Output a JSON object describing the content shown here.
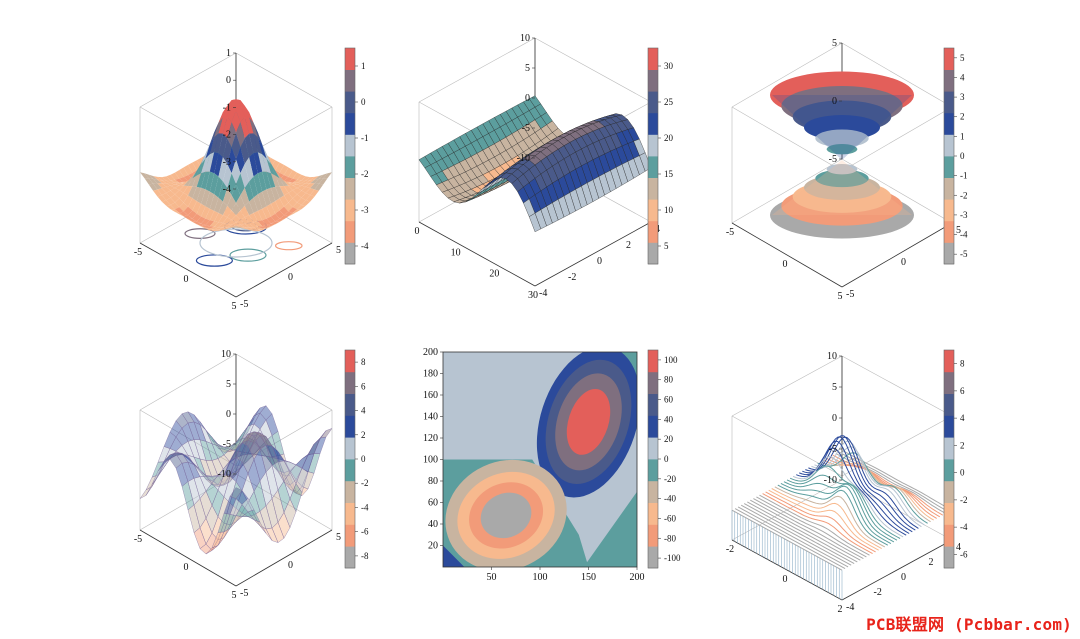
{
  "palette": [
    "#a9a9a9",
    "#f29b79",
    "#f7b98e",
    "#c8b4a0",
    "#5c9e9e",
    "#b7c4d1",
    "#2b4a9b",
    "#4a5a8a",
    "#7f6f7f",
    "#e35f5a"
  ],
  "watermark": "PCB联盟网 (Pcbbar.com)",
  "chart_data": [
    {
      "type": "surface",
      "subtype": "surface-with-floor-contour",
      "xticks": [
        "-5",
        "0",
        "5"
      ],
      "yticks": [
        "-5",
        "0",
        "5"
      ],
      "zticks": [
        "-4",
        "-3",
        "-2",
        "-1",
        "0",
        "1"
      ],
      "colorbar_ticks": [
        "1",
        "0",
        "-1",
        "-2",
        "-3",
        "-4"
      ],
      "zlim": [
        -4.5,
        1.8
      ]
    },
    {
      "type": "surface",
      "subtype": "saddle-mesh",
      "xticks": [
        "0",
        "10",
        "20",
        "30"
      ],
      "yticks": [
        "-4",
        "-2",
        "0",
        "2",
        "4"
      ],
      "zticks": [
        "-10",
        "-5",
        "0",
        "5",
        "10"
      ],
      "colorbar_ticks": [
        "30",
        "25",
        "20",
        "15",
        "10",
        "5"
      ],
      "zlim": [
        -10,
        10
      ]
    },
    {
      "type": "surface",
      "subtype": "double-cone",
      "xticks": [
        "-5",
        "0",
        "5"
      ],
      "yticks": [
        "-5",
        "0",
        "5"
      ],
      "zticks": [
        "-5",
        "0",
        "5"
      ],
      "colorbar_ticks": [
        "5",
        "4",
        "3",
        "2",
        "1",
        "0",
        "-1",
        "-2",
        "-3",
        "-4",
        "-5"
      ],
      "zlim": [
        -5,
        5
      ]
    },
    {
      "type": "surface",
      "subtype": "translucent-wavy-surface",
      "xticks": [
        "-5",
        "0",
        "5"
      ],
      "yticks": [
        "-5",
        "0",
        "5"
      ],
      "zticks": [
        "-10",
        "-5",
        "0",
        "5",
        "10"
      ],
      "colorbar_ticks": [
        "8",
        "6",
        "4",
        "2",
        "0",
        "-2",
        "-4",
        "-6",
        "-8"
      ],
      "zlim": [
        -10,
        10
      ]
    },
    {
      "type": "heatmap",
      "subtype": "filled-contour",
      "xticks": [
        "50",
        "100",
        "150",
        "200"
      ],
      "yticks": [
        "20",
        "40",
        "60",
        "80",
        "100",
        "120",
        "140",
        "160",
        "180",
        "200"
      ],
      "xlim": [
        0,
        200
      ],
      "ylim": [
        0,
        200
      ],
      "colorbar_ticks": [
        "100",
        "80",
        "60",
        "40",
        "20",
        "0",
        "-20",
        "-40",
        "-60",
        "-80",
        "-100"
      ]
    },
    {
      "type": "surface",
      "subtype": "waterfall-lines",
      "xticks": [
        "-2",
        "0",
        "2"
      ],
      "yticks": [
        "-4",
        "-2",
        "0",
        "2",
        "4"
      ],
      "zticks": [
        "-10",
        "-5",
        "0",
        "5",
        "10"
      ],
      "colorbar_ticks": [
        "8",
        "6",
        "4",
        "2",
        "0",
        "-2",
        "-4",
        "-6"
      ],
      "zlim": [
        -10,
        10
      ]
    }
  ]
}
